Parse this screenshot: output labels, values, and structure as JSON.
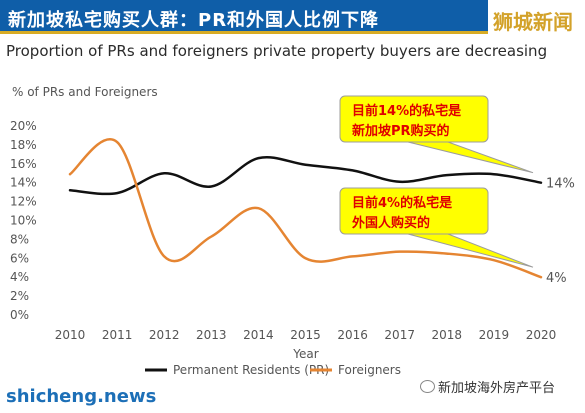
{
  "header": {
    "title": "新加坡私宅购买人群：PR和外国人比例下降",
    "logo_text": "狮城新闻",
    "subtitle": "Proportion of PRs and foreigners private property buyers are decreasing"
  },
  "footer": {
    "brand": "shicheng.news",
    "wechat": "新加坡海外房产平台"
  },
  "colors": {
    "title_bg": "#0f5ea8",
    "title_underline": "#d8ac25",
    "pr_line": "#111111",
    "foreigners_line": "#e58532",
    "callout_bg": "#ffff00",
    "callout_text": "#e00000"
  },
  "chart_data": {
    "type": "line",
    "title": "",
    "xlabel": "Year",
    "ylabel": "% of PRs and Foreigners",
    "x": [
      "2010",
      "2011",
      "2012",
      "2013",
      "2014",
      "2015",
      "2016",
      "2017",
      "2018",
      "2019",
      "2020"
    ],
    "yticks": [
      "0%",
      "2%",
      "4%",
      "6%",
      "8%",
      "10%",
      "12%",
      "14%",
      "16%",
      "18%",
      "20%"
    ],
    "ylim": [
      0,
      20
    ],
    "grid": false,
    "legend_position": "bottom",
    "series": [
      {
        "name": "Permanent Residents (PR)",
        "values": [
          13.2,
          12.9,
          15.0,
          13.6,
          16.6,
          15.9,
          15.3,
          14.1,
          14.8,
          14.9,
          14.0
        ],
        "end_label": "14%"
      },
      {
        "name": "Foreigners",
        "values": [
          14.9,
          18.3,
          6.2,
          8.3,
          11.3,
          6.0,
          6.2,
          6.7,
          6.5,
          5.8,
          4.0
        ],
        "end_label": "4%"
      }
    ],
    "annotations": [
      {
        "series": 0,
        "lines": [
          "目前14%的私宅是",
          "新加坡PR购买的"
        ]
      },
      {
        "series": 1,
        "lines": [
          "目前4%的私宅是",
          "外国人购买的"
        ]
      }
    ]
  }
}
